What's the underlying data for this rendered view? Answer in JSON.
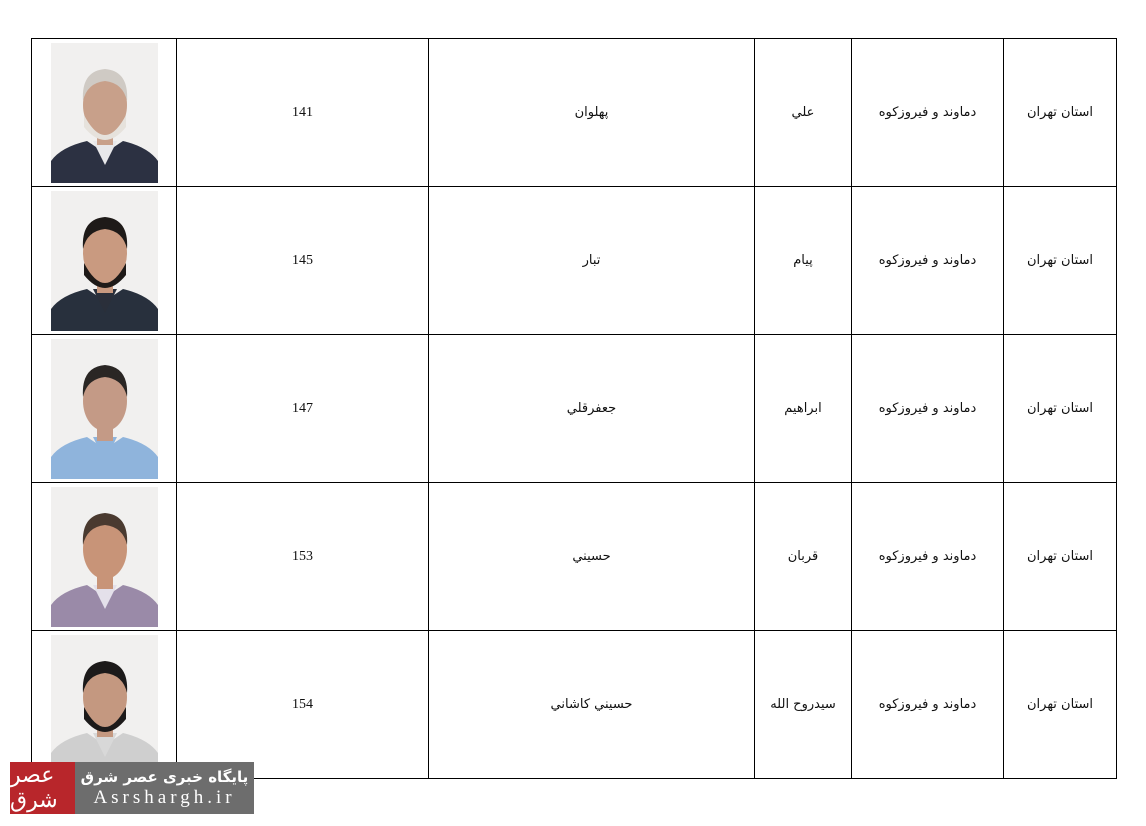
{
  "rows": [
    {
      "province": "استان تهران",
      "city": "دماوند و فيروزكوه",
      "first_name": "علي",
      "last_name": "پهلوان",
      "code": "141",
      "suit": "#2c3142",
      "shirt": "#e8e8ea",
      "hair": "#cfcac4",
      "skin": "#c8a08a",
      "beard": "#e6e2dc"
    },
    {
      "province": "استان تهران",
      "city": "دماوند و فيروزكوه",
      "first_name": "پيام",
      "last_name": "تبار",
      "code": "145",
      "suit": "#28303d",
      "shirt": "#2a2f3a",
      "hair": "#1e1a18",
      "skin": "#c99a80",
      "beard": "#1e1a18"
    },
    {
      "province": "استان تهران",
      "city": "دماوند و فيروزكوه",
      "first_name": "ابراهيم",
      "last_name": "جعفرقلي",
      "code": "147",
      "suit": "#8fb4dc",
      "shirt": "#8fb4dc",
      "hair": "#2a2624",
      "skin": "#c49a86",
      "beard": ""
    },
    {
      "province": "استان تهران",
      "city": "دماوند و فيروزكوه",
      "first_name": "قربان",
      "last_name": "حسيني",
      "code": "153",
      "suit": "#9a8aa8",
      "shirt": "#e4e0ea",
      "hair": "#4a3a30",
      "skin": "#c89478",
      "beard": ""
    },
    {
      "province": "استان تهران",
      "city": "دماوند و فيروزكوه",
      "first_name": "سيدروح الله",
      "last_name": "حسيني كاشاني",
      "code": "154",
      "suit": "#cfcfcf",
      "shirt": "#d8d8d8",
      "hair": "#1c1a1a",
      "skin": "#c49880",
      "beard": "#1c1a1a"
    }
  ],
  "watermark": {
    "logo": "عصر شرق",
    "title": "پايگاه خبری عصر شرق",
    "site": "Asrshargh.ir",
    "logo_color": "#b8262b",
    "band_color": "#6d6d6d"
  }
}
